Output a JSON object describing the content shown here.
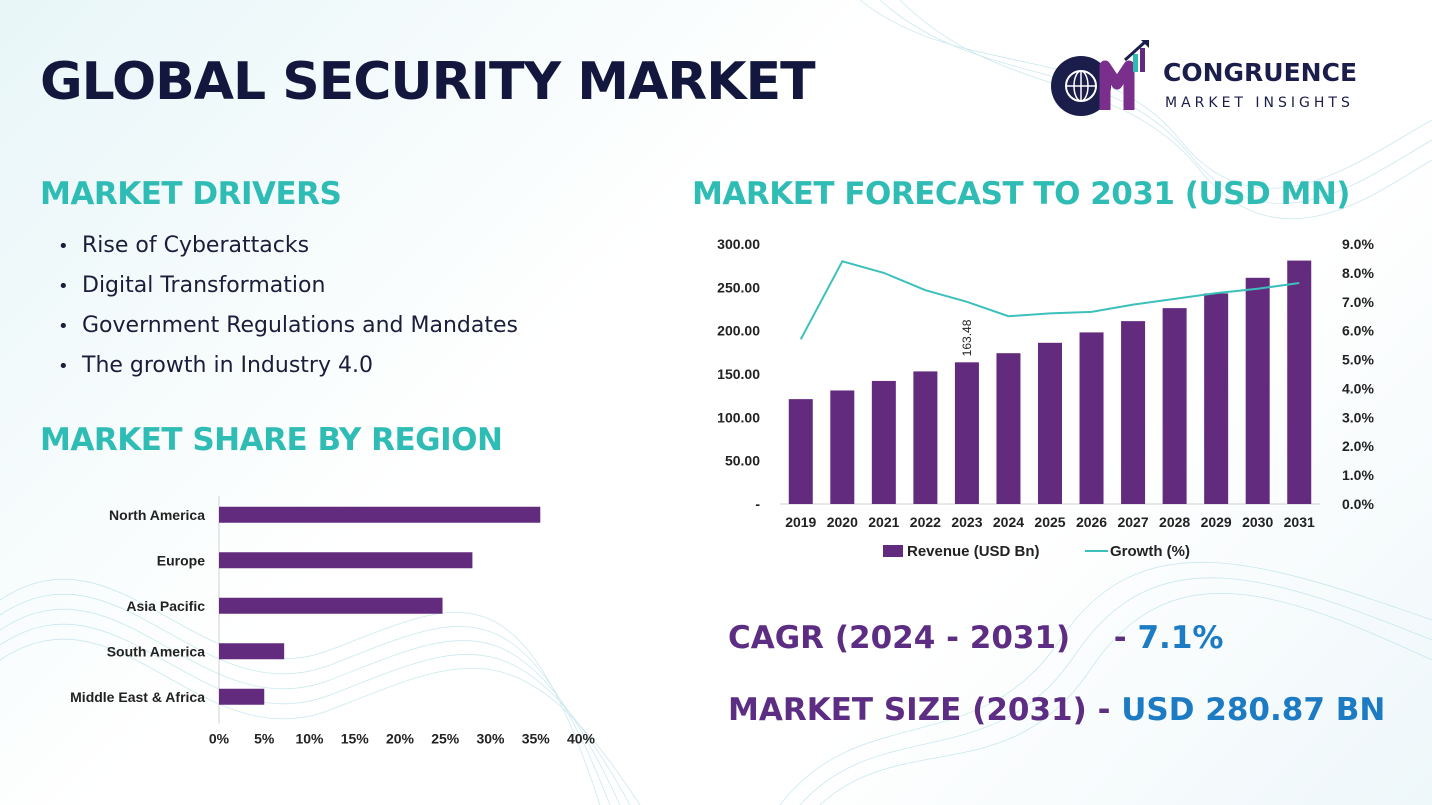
{
  "title": "GLOBAL SECURITY MARKET",
  "logo": {
    "name": "CONGRUENCE",
    "subtitle": "MARKET INSIGHTS",
    "mark_letters": "CM",
    "icon": "globe-bar-chart-logo"
  },
  "drivers": {
    "heading": "MARKET DRIVERS",
    "items": [
      "Rise of Cyberattacks",
      "Digital Transformation",
      "Government Regulations and Mandates",
      "The growth in Industry 4.0"
    ]
  },
  "region_share": {
    "heading": "MARKET SHARE BY REGION"
  },
  "forecast": {
    "heading": "MARKET FORECAST TO 2031 (USD MN)"
  },
  "kpis": {
    "cagr": {
      "label": "CAGR (2024 - 2031)",
      "sep": "-",
      "value": "7.1%"
    },
    "size": {
      "label": "MARKET SIZE (2031)",
      "sep": "-",
      "value": "USD 280.87 BN"
    }
  },
  "colors": {
    "navy": "#14173d",
    "teal": "#2fbcb4",
    "purple": "#632b7e",
    "blue": "#1d7bc4",
    "line": "#3cc0bb"
  },
  "chart_data": [
    {
      "type": "bar",
      "orientation": "horizontal",
      "categories": [
        "North America",
        "Europe",
        "Asia Pacific",
        "South America",
        "Middle East & Africa"
      ],
      "values": [
        35.5,
        28,
        24.7,
        7.2,
        5
      ],
      "unit": "%",
      "xlim": [
        0,
        40
      ],
      "xticks": [
        "0%",
        "5%",
        "10%",
        "15%",
        "20%",
        "25%",
        "30%",
        "35%",
        "40%"
      ],
      "color": "#632b7e",
      "grid": false
    },
    {
      "type": "bar+line",
      "categories": [
        "2019",
        "2020",
        "2021",
        "2022",
        "2023",
        "2024",
        "2025",
        "2026",
        "2027",
        "2028",
        "2029",
        "2030",
        "2031"
      ],
      "series": [
        {
          "name": "Revenue (USD Bn)",
          "type": "bar",
          "axis": "left",
          "color": "#632b7e",
          "values": [
            121,
            131,
            142,
            153,
            163.48,
            174,
            186,
            198,
            211,
            226,
            243,
            261,
            280.87
          ]
        },
        {
          "name": "Growth (%)",
          "type": "line",
          "axis": "right",
          "color": "#3cc0bb",
          "values": [
            5.7,
            8.4,
            8.0,
            7.4,
            7.0,
            6.5,
            6.6,
            6.65,
            6.9,
            7.1,
            7.3,
            7.45,
            7.65
          ]
        }
      ],
      "data_labels": [
        {
          "category": "2023",
          "text": "163.48"
        }
      ],
      "ylim_left": [
        0,
        300
      ],
      "yticks_left": [
        "-",
        "50.00",
        "100.00",
        "150.00",
        "200.00",
        "250.00",
        "300.00"
      ],
      "ylim_right": [
        0,
        9
      ],
      "yticks_right": [
        "0.0%",
        "1.0%",
        "2.0%",
        "3.0%",
        "4.0%",
        "5.0%",
        "6.0%",
        "7.0%",
        "8.0%",
        "9.0%"
      ],
      "legend": "bottom",
      "grid": false
    }
  ]
}
